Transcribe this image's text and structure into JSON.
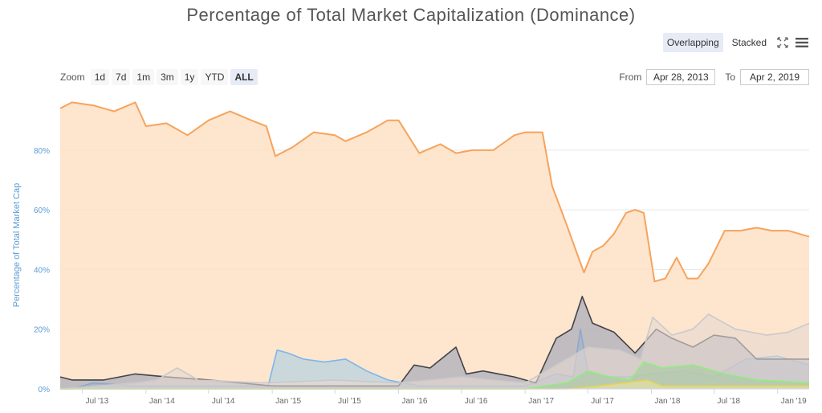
{
  "header": {
    "title": "Percentage of Total Market Capitalization (Dominance)"
  },
  "view_modes": [
    {
      "label": "Overlapping",
      "active": true
    },
    {
      "label": "Stacked",
      "active": false
    }
  ],
  "icons": {
    "fullscreen": "expand-icon",
    "menu": "hamburger-menu-icon"
  },
  "zoom": {
    "label": "Zoom",
    "buttons": [
      {
        "label": "1d",
        "active": false
      },
      {
        "label": "7d",
        "active": false
      },
      {
        "label": "1m",
        "active": false
      },
      {
        "label": "3m",
        "active": false
      },
      {
        "label": "1y",
        "active": false
      },
      {
        "label": "YTD",
        "active": false
      },
      {
        "label": "ALL",
        "active": true
      }
    ]
  },
  "range": {
    "from_label": "From",
    "from_value": "Apr 28, 2013",
    "to_label": "To",
    "to_value": "Apr 2, 2019"
  },
  "chart_data": {
    "type": "area",
    "title": "Percentage of Total Market Capitalization (Dominance)",
    "ylabel": "Percentage of Total Market Cap",
    "xlabel": "",
    "ylim": [
      0,
      98
    ],
    "xlim": [
      "2013-04-28",
      "2019-04-02"
    ],
    "yticks": [
      0,
      20,
      40,
      60,
      80
    ],
    "ytick_labels": [
      "0%",
      "20%",
      "40%",
      "60%",
      "80%"
    ],
    "xticks": [
      "2013-07-01",
      "2014-01-01",
      "2014-07-01",
      "2015-01-01",
      "2015-07-01",
      "2016-01-01",
      "2016-07-01",
      "2017-01-01",
      "2017-07-01",
      "2018-01-01",
      "2018-07-01",
      "2019-01-01"
    ],
    "xtick_labels": [
      "Jul '13",
      "Jan '14",
      "Jul '14",
      "Jan '15",
      "Jul '15",
      "Jan '16",
      "Jul '16",
      "Jan '17",
      "Jul '17",
      "Jan '18",
      "Jul '18",
      "Jan '19"
    ],
    "grid": true,
    "legend": "none",
    "series": [
      {
        "color": "#f7a35c",
        "fill": "#fde0c5",
        "points": [
          [
            "2013-04-28",
            94
          ],
          [
            "2013-06-01",
            96
          ],
          [
            "2013-08-01",
            95
          ],
          [
            "2013-10-01",
            93
          ],
          [
            "2013-12-01",
            96
          ],
          [
            "2014-01-01",
            88
          ],
          [
            "2014-03-01",
            89
          ],
          [
            "2014-05-01",
            85
          ],
          [
            "2014-07-01",
            90
          ],
          [
            "2014-09-01",
            93
          ],
          [
            "2014-11-01",
            90
          ],
          [
            "2014-12-15",
            88
          ],
          [
            "2015-01-10",
            78
          ],
          [
            "2015-03-01",
            81
          ],
          [
            "2015-05-01",
            86
          ],
          [
            "2015-07-01",
            85
          ],
          [
            "2015-08-01",
            83
          ],
          [
            "2015-10-01",
            86
          ],
          [
            "2015-12-01",
            90
          ],
          [
            "2016-01-01",
            90
          ],
          [
            "2016-03-01",
            79
          ],
          [
            "2016-05-01",
            82
          ],
          [
            "2016-06-15",
            79
          ],
          [
            "2016-08-01",
            80
          ],
          [
            "2016-10-01",
            80
          ],
          [
            "2016-12-01",
            85
          ],
          [
            "2017-01-01",
            86
          ],
          [
            "2017-02-20",
            86
          ],
          [
            "2017-03-20",
            68
          ],
          [
            "2017-05-01",
            55
          ],
          [
            "2017-06-01",
            45
          ],
          [
            "2017-06-20",
            39
          ],
          [
            "2017-07-15",
            46
          ],
          [
            "2017-08-15",
            48
          ],
          [
            "2017-09-15",
            52
          ],
          [
            "2017-10-20",
            59
          ],
          [
            "2017-11-15",
            60
          ],
          [
            "2017-12-10",
            59
          ],
          [
            "2018-01-10",
            36
          ],
          [
            "2018-02-10",
            37
          ],
          [
            "2018-03-15",
            44
          ],
          [
            "2018-04-15",
            37
          ],
          [
            "2018-05-15",
            37
          ],
          [
            "2018-06-15",
            42
          ],
          [
            "2018-08-01",
            53
          ],
          [
            "2018-09-15",
            53
          ],
          [
            "2018-11-01",
            54
          ],
          [
            "2018-12-15",
            53
          ],
          [
            "2019-02-01",
            53
          ],
          [
            "2019-04-02",
            51
          ]
        ]
      },
      {
        "color": "#7cb5ec",
        "fill": "#a9cfe6",
        "points": [
          [
            "2013-04-28",
            0
          ],
          [
            "2013-06-01",
            0
          ],
          [
            "2013-08-01",
            2
          ],
          [
            "2013-12-01",
            1
          ],
          [
            "2014-07-01",
            1
          ],
          [
            "2014-12-20",
            1
          ],
          [
            "2015-01-15",
            13
          ],
          [
            "2015-02-15",
            12
          ],
          [
            "2015-04-01",
            10
          ],
          [
            "2015-06-01",
            9
          ],
          [
            "2015-08-01",
            10
          ],
          [
            "2015-10-01",
            6
          ],
          [
            "2015-12-01",
            3
          ],
          [
            "2016-03-01",
            1
          ],
          [
            "2016-07-01",
            1
          ],
          [
            "2017-01-01",
            1
          ],
          [
            "2017-04-01",
            5
          ],
          [
            "2017-05-20",
            4
          ],
          [
            "2017-06-10",
            20
          ],
          [
            "2017-07-01",
            6
          ],
          [
            "2017-09-01",
            4
          ],
          [
            "2017-11-01",
            4
          ],
          [
            "2018-01-01",
            5
          ],
          [
            "2018-04-01",
            6
          ],
          [
            "2018-07-01",
            4
          ],
          [
            "2018-10-01",
            10
          ],
          [
            "2019-01-01",
            11
          ],
          [
            "2019-04-02",
            8
          ]
        ]
      },
      {
        "color": "#434348",
        "fill": "#9aa0b8",
        "points": [
          [
            "2013-04-28",
            4
          ],
          [
            "2013-06-01",
            3
          ],
          [
            "2013-09-01",
            3
          ],
          [
            "2013-12-01",
            5
          ],
          [
            "2014-03-01",
            4
          ],
          [
            "2014-07-01",
            3
          ],
          [
            "2015-01-01",
            1
          ],
          [
            "2015-07-01",
            1
          ],
          [
            "2016-01-01",
            1
          ],
          [
            "2016-02-15",
            8
          ],
          [
            "2016-04-01",
            7
          ],
          [
            "2016-06-15",
            14
          ],
          [
            "2016-07-15",
            5
          ],
          [
            "2016-09-01",
            6
          ],
          [
            "2016-12-01",
            4
          ],
          [
            "2017-02-01",
            2
          ],
          [
            "2017-04-01",
            17
          ],
          [
            "2017-05-15",
            20
          ],
          [
            "2017-06-15",
            31
          ],
          [
            "2017-07-15",
            22
          ],
          [
            "2017-09-15",
            19
          ],
          [
            "2017-11-15",
            12
          ],
          [
            "2018-01-15",
            20
          ],
          [
            "2018-03-01",
            17
          ],
          [
            "2018-05-01",
            14
          ],
          [
            "2018-07-01",
            18
          ],
          [
            "2018-09-01",
            17
          ],
          [
            "2018-11-01",
            10
          ],
          [
            "2019-01-15",
            10
          ],
          [
            "2019-04-02",
            10
          ]
        ]
      },
      {
        "color": "#c9c9cc",
        "fill": "#e6d9d0",
        "points": [
          [
            "2013-04-28",
            0
          ],
          [
            "2013-12-01",
            2
          ],
          [
            "2014-02-01",
            3
          ],
          [
            "2014-04-01",
            7
          ],
          [
            "2014-06-01",
            3
          ],
          [
            "2014-12-01",
            2
          ],
          [
            "2015-07-01",
            3
          ],
          [
            "2016-01-01",
            2
          ],
          [
            "2016-07-01",
            4
          ],
          [
            "2017-01-01",
            2
          ],
          [
            "2017-05-01",
            10
          ],
          [
            "2017-07-01",
            14
          ],
          [
            "2017-10-01",
            13
          ],
          [
            "2017-12-01",
            10
          ],
          [
            "2018-01-05",
            24
          ],
          [
            "2018-03-01",
            18
          ],
          [
            "2018-05-01",
            20
          ],
          [
            "2018-06-15",
            25
          ],
          [
            "2018-09-01",
            20
          ],
          [
            "2018-12-01",
            18
          ],
          [
            "2019-02-01",
            19
          ],
          [
            "2019-04-02",
            22
          ]
        ]
      },
      {
        "color": "#90ed7d",
        "fill": "#a8c9a0",
        "points": [
          [
            "2013-04-28",
            0
          ],
          [
            "2017-01-01",
            0
          ],
          [
            "2017-05-01",
            2
          ],
          [
            "2017-07-01",
            6
          ],
          [
            "2017-09-01",
            4
          ],
          [
            "2017-11-01",
            3
          ],
          [
            "2017-12-10",
            9
          ],
          [
            "2018-02-01",
            7
          ],
          [
            "2018-05-01",
            8
          ],
          [
            "2018-08-01",
            5
          ],
          [
            "2018-11-01",
            3
          ],
          [
            "2019-04-02",
            2
          ]
        ]
      },
      {
        "color": "#e4d354",
        "fill": "#efe3a0",
        "points": [
          [
            "2013-04-28",
            0
          ],
          [
            "2017-05-01",
            0
          ],
          [
            "2017-08-01",
            1
          ],
          [
            "2017-12-20",
            3
          ],
          [
            "2018-02-01",
            1
          ],
          [
            "2018-08-01",
            1
          ],
          [
            "2019-04-02",
            1
          ]
        ]
      }
    ]
  }
}
